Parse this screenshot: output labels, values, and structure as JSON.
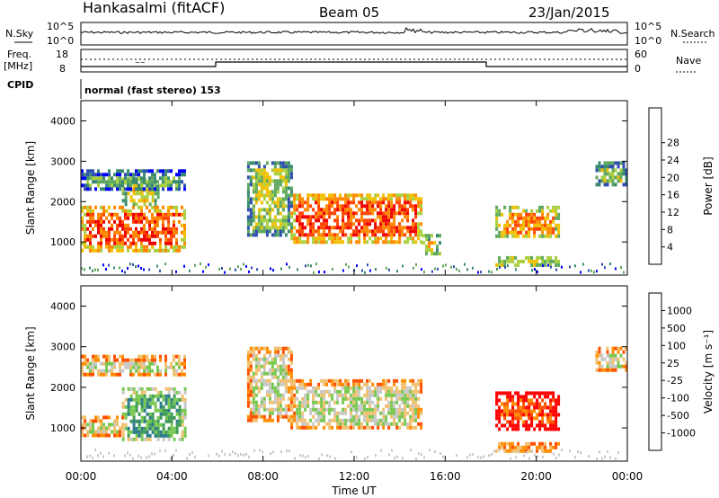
{
  "header": {
    "radar": "Hankasalmi (fitACF)",
    "beam": "Beam 05",
    "date": "23/Jan/2015"
  },
  "top_panels": {
    "nsky_label": "N.Sky",
    "nsearch_label": "N.Search",
    "nsky_ticks": [
      "10^5",
      "10^0"
    ],
    "freq_label_1": "Freq.",
    "freq_label_2": "[MHz]",
    "freq_ticks": [
      "18",
      "8"
    ],
    "nave_ticks": [
      "60",
      "0"
    ],
    "nave_label": "Nave",
    "cpid_label": "CPID",
    "cpid_text": "normal (fast stereo) 153"
  },
  "colors": {
    "power": [
      "#0000ff",
      "#2f4fb0",
      "#3a8a70",
      "#5fa85f",
      "#a8d040",
      "#f0c000",
      "#ff8800",
      "#ff4400",
      "#ee0000"
    ],
    "velocity": [
      "#ff0000",
      "#ff5000",
      "#ff8c00",
      "#f0c070",
      "#c8c8c8",
      "#78c850",
      "#3c9a55",
      "#2a7a8a",
      "#2a4aaa"
    ],
    "ground_scatter": "#c8c8c8"
  },
  "chart_data": [
    {
      "type": "heatmap",
      "panel": "power",
      "xlabel": "",
      "ylabel": "Slant Range [km]",
      "x_ticks": [
        "00:00",
        "04:00",
        "08:00",
        "12:00",
        "16:00",
        "20:00",
        "00:00"
      ],
      "y_ticks": [
        1000,
        2000,
        3000,
        4000
      ],
      "xlim": [
        0,
        24
      ],
      "ylim": [
        180,
        4500
      ],
      "colorbar_label": "Power [dB]",
      "colorbar_ticks": [
        4,
        8,
        12,
        16,
        20,
        24,
        28
      ],
      "regions": [
        {
          "t0": 0.0,
          "t1": 4.6,
          "r0": 800,
          "r1": 1900,
          "level": 7
        },
        {
          "t0": 1.8,
          "t1": 3.4,
          "r0": 1900,
          "r1": 2600,
          "level": 5
        },
        {
          "t0": 0.0,
          "t1": 4.6,
          "r0": 2300,
          "r1": 2800,
          "level": 3
        },
        {
          "t0": 9.2,
          "t1": 15.0,
          "r0": 1000,
          "r1": 2200,
          "level": 7
        },
        {
          "t0": 7.3,
          "t1": 9.2,
          "r0": 1200,
          "r1": 3000,
          "level": 4
        },
        {
          "t0": 15.0,
          "t1": 15.8,
          "r0": 700,
          "r1": 1200,
          "level": 5
        },
        {
          "t0": 18.2,
          "t1": 21.0,
          "r0": 1100,
          "r1": 1900,
          "level": 6
        },
        {
          "t0": 18.2,
          "t1": 21.0,
          "r0": 450,
          "r1": 650,
          "level": 6
        },
        {
          "t0": 22.6,
          "t1": 24.0,
          "r0": 2400,
          "r1": 3000,
          "level": 4
        }
      ]
    },
    {
      "type": "heatmap",
      "panel": "velocity",
      "xlabel": "Time UT",
      "ylabel": "Slant Range [km]",
      "x_ticks": [
        "00:00",
        "04:00",
        "08:00",
        "12:00",
        "16:00",
        "20:00",
        "00:00"
      ],
      "y_ticks": [
        1000,
        2000,
        3000,
        4000
      ],
      "xlim": [
        0,
        24
      ],
      "ylim": [
        180,
        4500
      ],
      "colorbar_label": "Velocity [m s⁻¹]",
      "colorbar_ticks": [
        1000,
        500,
        100,
        25,
        -25,
        -100,
        -500,
        -1000
      ],
      "regions": [
        {
          "t0": 1.8,
          "t1": 4.6,
          "r0": 700,
          "r1": 2000,
          "level": 6
        },
        {
          "t0": 0.0,
          "t1": 1.8,
          "r0": 800,
          "r1": 1300,
          "level": 4
        },
        {
          "t0": 0.0,
          "t1": 4.6,
          "r0": 2300,
          "r1": 2800,
          "level": 4
        },
        {
          "t0": 9.2,
          "t1": 15.0,
          "r0": 1000,
          "r1": 2200,
          "level": 4
        },
        {
          "t0": 7.3,
          "t1": 9.2,
          "r0": 1200,
          "r1": 3000,
          "level": 4
        },
        {
          "t0": 18.2,
          "t1": 21.0,
          "r0": 1000,
          "r1": 1900,
          "level": 1
        },
        {
          "t0": 18.2,
          "t1": 21.0,
          "r0": 450,
          "r1": 650,
          "level": 4
        },
        {
          "t0": 22.6,
          "t1": 24.0,
          "r0": 2400,
          "r1": 3000,
          "level": 4
        }
      ]
    }
  ]
}
